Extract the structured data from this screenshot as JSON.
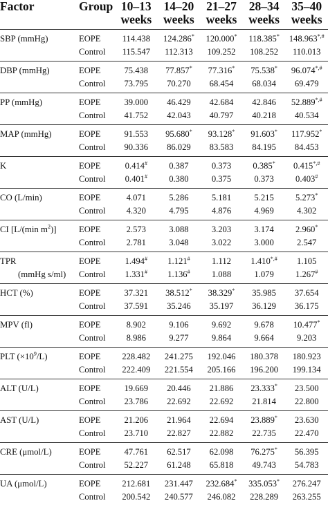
{
  "header": {
    "factor": "Factor",
    "group": "Group",
    "weeks": [
      {
        "range": "10–13",
        "unit": "weeks"
      },
      {
        "range": "14–20",
        "unit": "weeks"
      },
      {
        "range": "21–27",
        "unit": "weeks"
      },
      {
        "range": "28–34",
        "unit": "weeks"
      },
      {
        "range": "35–40",
        "unit": "weeks"
      }
    ]
  },
  "rows": [
    {
      "factor": "SBP (mmHg)",
      "eope": [
        [
          "114.438",
          ""
        ],
        [
          "124.286",
          "*"
        ],
        [
          "120.000",
          "*"
        ],
        [
          "118.385",
          "*"
        ],
        [
          "148.963",
          "*,#"
        ]
      ],
      "control": [
        [
          "115.547",
          ""
        ],
        [
          "112.313",
          ""
        ],
        [
          "109.252",
          ""
        ],
        [
          "108.252",
          ""
        ],
        [
          "110.013",
          ""
        ]
      ]
    },
    {
      "factor": "DBP (mmHg)",
      "eope": [
        [
          "75.438",
          ""
        ],
        [
          "77.857",
          "*"
        ],
        [
          "77.316",
          "*"
        ],
        [
          "75.538",
          "*"
        ],
        [
          "96.074",
          "*,#"
        ]
      ],
      "control": [
        [
          "73.795",
          ""
        ],
        [
          "70.270",
          ""
        ],
        [
          "68.454",
          ""
        ],
        [
          "68.034",
          ""
        ],
        [
          "69.479",
          ""
        ]
      ]
    },
    {
      "factor": "PP (mmHg)",
      "eope": [
        [
          "39.000",
          ""
        ],
        [
          "46.429",
          ""
        ],
        [
          "42.684",
          ""
        ],
        [
          "42.846",
          ""
        ],
        [
          "52.889",
          "*,#"
        ]
      ],
      "control": [
        [
          "41.752",
          ""
        ],
        [
          "42.043",
          ""
        ],
        [
          "40.797",
          ""
        ],
        [
          "40.218",
          ""
        ],
        [
          "40.534",
          ""
        ]
      ]
    },
    {
      "factor": "MAP (mmHg)",
      "eope": [
        [
          "91.553",
          ""
        ],
        [
          "95.680",
          "*"
        ],
        [
          "93.128",
          "*"
        ],
        [
          "91.603",
          "*"
        ],
        [
          "117.952",
          "*"
        ]
      ],
      "control": [
        [
          "90.336",
          ""
        ],
        [
          "86.029",
          ""
        ],
        [
          "83.583",
          ""
        ],
        [
          "84.195",
          ""
        ],
        [
          "84.453",
          ""
        ]
      ]
    },
    {
      "factor": "K",
      "eope": [
        [
          "0.414",
          "#"
        ],
        [
          "0.387",
          ""
        ],
        [
          "0.373",
          ""
        ],
        [
          "0.385",
          "*"
        ],
        [
          "0.415",
          "*,#"
        ]
      ],
      "control": [
        [
          "0.401",
          "#"
        ],
        [
          "0.380",
          ""
        ],
        [
          "0.375",
          ""
        ],
        [
          "0.373",
          ""
        ],
        [
          "0.403",
          "#"
        ]
      ]
    },
    {
      "factor": "CO (L/min)",
      "eope": [
        [
          "4.071",
          ""
        ],
        [
          "5.286",
          ""
        ],
        [
          "5.181",
          ""
        ],
        [
          "5.215",
          ""
        ],
        [
          "5.273",
          "*"
        ]
      ],
      "control": [
        [
          "4.320",
          ""
        ],
        [
          "4.795",
          ""
        ],
        [
          "4.876",
          ""
        ],
        [
          "4.969",
          ""
        ],
        [
          "4.302",
          ""
        ]
      ]
    },
    {
      "factor_parts": {
        "pre": "CI [L/(min m",
        "sup": "2",
        "post": ")]"
      },
      "eope": [
        [
          "2.573",
          ""
        ],
        [
          "3.088",
          ""
        ],
        [
          "3.203",
          ""
        ],
        [
          "3.174",
          ""
        ],
        [
          "2.960",
          "*"
        ]
      ],
      "control": [
        [
          "2.781",
          ""
        ],
        [
          "3.048",
          ""
        ],
        [
          "3.022",
          ""
        ],
        [
          "3.000",
          ""
        ],
        [
          "2.547",
          ""
        ]
      ]
    },
    {
      "factor_lines": [
        "TPR",
        "(mmHg s/ml)"
      ],
      "eope": [
        [
          "1.494",
          "#"
        ],
        [
          "1.121",
          "#"
        ],
        [
          "1.112",
          ""
        ],
        [
          "1.410",
          "*,#"
        ],
        [
          "1.105",
          ""
        ]
      ],
      "control": [
        [
          "1.331",
          "#"
        ],
        [
          "1.136",
          "#"
        ],
        [
          "1.088",
          ""
        ],
        [
          "1.079",
          ""
        ],
        [
          "1.267",
          "#"
        ]
      ]
    },
    {
      "factor": "HCT (%)",
      "eope": [
        [
          "37.321",
          ""
        ],
        [
          "38.512",
          "*"
        ],
        [
          "38.329",
          "*"
        ],
        [
          "35.985",
          ""
        ],
        [
          "37.654",
          ""
        ]
      ],
      "control": [
        [
          "37.591",
          ""
        ],
        [
          "35.246",
          ""
        ],
        [
          "35.197",
          ""
        ],
        [
          "36.129",
          ""
        ],
        [
          "36.175",
          ""
        ]
      ]
    },
    {
      "factor": "MPV (fl)",
      "eope": [
        [
          "8.902",
          ""
        ],
        [
          "9.106",
          ""
        ],
        [
          "9.692",
          ""
        ],
        [
          "9.678",
          ""
        ],
        [
          "10.477",
          "*"
        ]
      ],
      "control": [
        [
          "8.986",
          ""
        ],
        [
          "9.277",
          ""
        ],
        [
          "9.864",
          ""
        ],
        [
          "9.664",
          ""
        ],
        [
          "9.203",
          ""
        ]
      ]
    },
    {
      "factor_parts": {
        "pre": "PLT (×10",
        "sup": "9",
        "post": "/L)"
      },
      "eope": [
        [
          "228.482",
          ""
        ],
        [
          "241.275",
          ""
        ],
        [
          "192.046",
          ""
        ],
        [
          "180.378",
          ""
        ],
        [
          "180.923",
          ""
        ]
      ],
      "control": [
        [
          "222.409",
          ""
        ],
        [
          "221.554",
          ""
        ],
        [
          "205.166",
          ""
        ],
        [
          "196.200",
          ""
        ],
        [
          "199.134",
          ""
        ]
      ]
    },
    {
      "factor": "ALT (U/L)",
      "eope": [
        [
          "19.669",
          ""
        ],
        [
          "20.446",
          ""
        ],
        [
          "21.886",
          ""
        ],
        [
          "23.333",
          "*"
        ],
        [
          "23.500",
          ""
        ]
      ],
      "control": [
        [
          "23.786",
          ""
        ],
        [
          "22.692",
          ""
        ],
        [
          "22.692",
          ""
        ],
        [
          "21.814",
          ""
        ],
        [
          "22.800",
          ""
        ]
      ]
    },
    {
      "factor": "AST (U/L)",
      "eope": [
        [
          "21.206",
          ""
        ],
        [
          "21.964",
          ""
        ],
        [
          "22.694",
          ""
        ],
        [
          "23.889",
          "*"
        ],
        [
          "23.630",
          ""
        ]
      ],
      "control": [
        [
          "23.710",
          ""
        ],
        [
          "22.827",
          ""
        ],
        [
          "22.882",
          ""
        ],
        [
          "22.735",
          ""
        ],
        [
          "22.470",
          ""
        ]
      ]
    },
    {
      "factor": "CRE (μmol/L)",
      "eope": [
        [
          "47.761",
          ""
        ],
        [
          "62.517",
          ""
        ],
        [
          "62.098",
          ""
        ],
        [
          "76.275",
          "*"
        ],
        [
          "56.395",
          ""
        ]
      ],
      "control": [
        [
          "52.227",
          ""
        ],
        [
          "61.248",
          ""
        ],
        [
          "65.818",
          ""
        ],
        [
          "49.743",
          ""
        ],
        [
          "54.783",
          ""
        ]
      ]
    },
    {
      "factor": "UA (μmol/L)",
      "eope": [
        [
          "212.681",
          ""
        ],
        [
          "231.447",
          ""
        ],
        [
          "232.684",
          "*"
        ],
        [
          "335.053",
          "*"
        ],
        [
          "276.247",
          ""
        ]
      ],
      "control": [
        [
          "200.542",
          ""
        ],
        [
          "240.577",
          ""
        ],
        [
          "246.082",
          ""
        ],
        [
          "228.289",
          ""
        ],
        [
          "263.255",
          ""
        ]
      ]
    }
  ],
  "groups": {
    "eope": "EOPE",
    "control": "Control"
  }
}
